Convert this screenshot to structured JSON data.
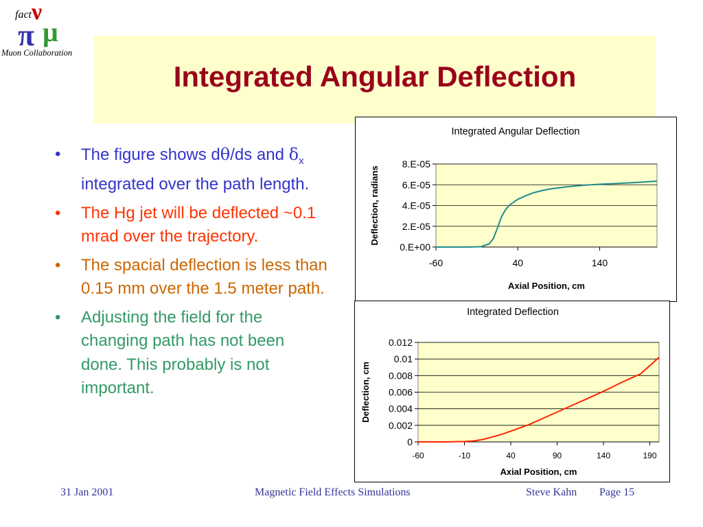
{
  "logo": {
    "line1": "fact",
    "line2": "Muon Collaboration",
    "symbols": [
      "ν",
      "π",
      "μ"
    ]
  },
  "title": "Integrated Angular Deflection",
  "bullets": [
    {
      "parts": [
        "The figure shows  d",
        "θ",
        "/ds and ",
        "δ",
        "x",
        " integrated over the path length."
      ]
    },
    {
      "text": "The Hg jet will be deflected ~0.1 mrad over the trajectory."
    },
    {
      "text": "The spacial deflection is less than 0.15 mm over the 1.5 meter path."
    },
    {
      "text": "Adjusting the field for the changing path has not been done.  This probably is not important."
    }
  ],
  "colors": {
    "title": "#99001a",
    "plot_bg": "#ffffcc",
    "series1": "#1f8c8c",
    "series2": "#ff2200",
    "footer": "#333399"
  },
  "chart_data": [
    {
      "type": "line",
      "title": "Integrated Angular Deflection",
      "xlabel": "Axial Position, cm",
      "ylabel": "Deflection, radians",
      "xlim": [
        -60,
        210
      ],
      "ylim": [
        0,
        8e-05
      ],
      "xticks": [
        -60,
        40,
        140
      ],
      "xtick_labels": [
        "-60",
        "40",
        "140"
      ],
      "yticks": [
        0,
        2e-05,
        4e-05,
        6e-05,
        8e-05
      ],
      "ytick_labels": [
        "0.E+00",
        "2.E-05",
        "4.E-05",
        "6.E-05",
        "8.E-05"
      ],
      "grid": true,
      "series": [
        {
          "x": [
            -60,
            -40,
            -20,
            -5,
            5,
            10,
            15,
            20,
            25,
            30,
            40,
            50,
            60,
            70,
            80,
            90,
            100,
            120,
            140,
            160,
            180,
            200,
            210
          ],
          "y": [
            0,
            0,
            0,
            3e-07,
            3e-06,
            8e-06,
            1.8e-05,
            2.9e-05,
            3.6e-05,
            4.05e-05,
            4.6e-05,
            4.95e-05,
            5.25e-05,
            5.45e-05,
            5.6e-05,
            5.7e-05,
            5.8e-05,
            5.95e-05,
            6.05e-05,
            6.12e-05,
            6.2e-05,
            6.3e-05,
            6.35e-05
          ]
        }
      ]
    },
    {
      "type": "line",
      "title": "Integrated Deflection",
      "xlabel": "Axial Position, cm",
      "ylabel": "Deflection, cm",
      "xlim": [
        -60,
        200
      ],
      "ylim": [
        0,
        0.012
      ],
      "xticks": [
        -60,
        -10,
        40,
        90,
        140,
        190
      ],
      "xtick_labels": [
        "-60",
        "-10",
        "40",
        "90",
        "140",
        "190"
      ],
      "yticks": [
        0,
        0.002,
        0.004,
        0.006,
        0.008,
        0.01,
        0.012
      ],
      "ytick_labels": [
        "0",
        "0.002",
        "0.004",
        "0.006",
        "0.008",
        "0.01",
        "0.012"
      ],
      "grid": true,
      "series": [
        {
          "x": [
            -60,
            -30,
            -10,
            0,
            10,
            20,
            30,
            40,
            60,
            80,
            100,
            120,
            140,
            160,
            180,
            200
          ],
          "y": [
            0,
            0,
            5e-05,
            0.00012,
            0.0003,
            0.0006,
            0.0009,
            0.0013,
            0.0021,
            0.0031,
            0.0041,
            0.0051,
            0.0061,
            0.0072,
            0.0082,
            0.0102
          ]
        }
      ]
    }
  ],
  "footer": {
    "date": "31 Jan 2001",
    "center": "Magnetic Field Effects Simulations",
    "author": "Steve Kahn",
    "page": "Page 15"
  }
}
